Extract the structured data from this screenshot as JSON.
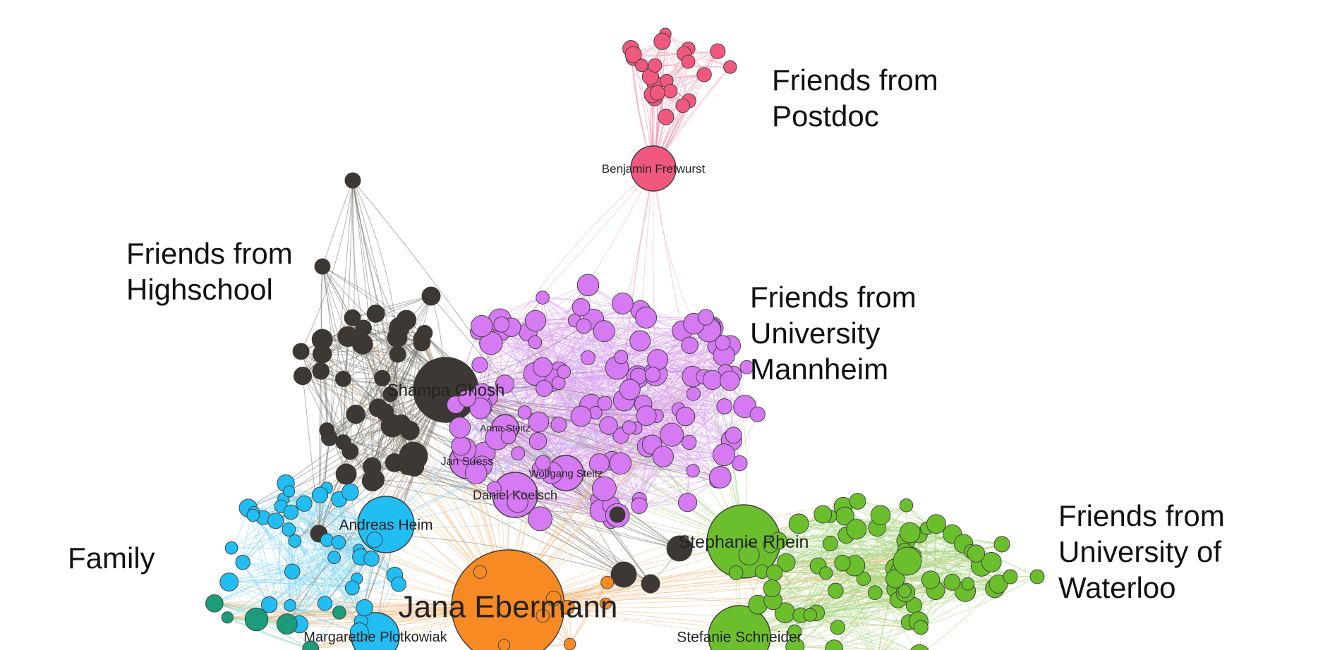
{
  "clusters": {
    "postdoc": {
      "label_lines": [
        "Friends from",
        "Postdoc"
      ],
      "color": "#f0587e",
      "edge": "#f19ab0"
    },
    "highschool": {
      "label_lines": [
        "Friends from",
        "Highschool"
      ],
      "color": "#3d3833",
      "edge": "#7a7670"
    },
    "mannheim": {
      "label_lines": [
        "Friends from",
        "University",
        "Mannheim"
      ],
      "color": "#d57af2",
      "edge": "#dba6f0"
    },
    "family": {
      "label_lines": [
        "Family"
      ],
      "color": "#22bdf2",
      "edge": "#7fd4f3"
    },
    "waterloo": {
      "label_lines": [
        "Friends from",
        "University of",
        "Waterloo"
      ],
      "color": "#6cbf2c",
      "edge": "#a8d57f"
    },
    "center": {
      "color": "#f78a23",
      "edge": "#f4b87a"
    },
    "teal": {
      "color": "#1c9c7a",
      "edge": "#6ec9b0"
    }
  },
  "people": {
    "jana": "Jana Ebermann",
    "shampa": "Shampa Ghosh",
    "benjamin": "Benjamin Fretwurst",
    "andreas": "Andreas Heim",
    "stephanie": "Stephanie Rhein",
    "stefanie": "Stefanie Schneider",
    "margarethe": "Margarethe Plotkowiak",
    "daniel": "Daniel Koelsch",
    "jan": "Jan Suess",
    "wolfgang": "Wolfgang Steitz",
    "anna": "Anna Steitz"
  }
}
